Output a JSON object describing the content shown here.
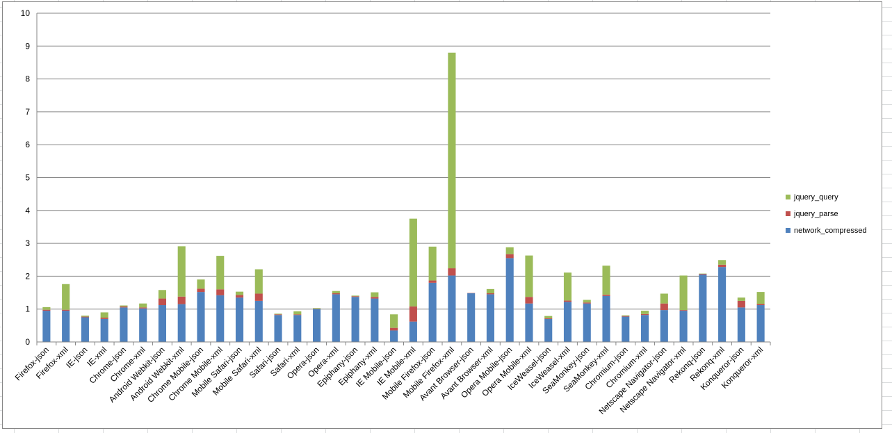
{
  "chart_data": {
    "type": "bar",
    "stacked": true,
    "categories": [
      "Firefox-json",
      "Firefox-xml",
      "IE-json",
      "IE-xml",
      "Chrome-json",
      "Chrome-xml",
      "Android Webkit-json",
      "Android Webkit-xml",
      "Chrome Mobile-json",
      "Chrome Mobile-xml",
      "Mobile Safari-json",
      "Mobile Safari-xml",
      "Safari-json",
      "Safari-xml",
      "Opera-json",
      "Opera-xml",
      "Epiphany-json",
      "Epiphany-xml",
      "IE Mobile-json",
      "IE Mobile-xml",
      "Mobile Firefox-json",
      "Mobile Firefox-xml",
      "Avant Browser-json",
      "Avant Browser-xml",
      "Opera Mobile-json",
      "Opera Mobile-xml",
      "IceWeasel-json",
      "IceWeasel-xml",
      "SeaMonkey-json",
      "SeaMonkey-xml",
      "Chromium-json",
      "Chromium-xml",
      "Netscape Navigator-json",
      "Netscape Navigator-xml",
      "Rekonq-json",
      "Rekonq-xml",
      "Konqueror-json",
      "Konqueror-xml"
    ],
    "series": [
      {
        "name": "network_compressed",
        "color": "#4f81bd",
        "values": [
          0.95,
          0.95,
          0.75,
          0.7,
          1.05,
          1.02,
          1.12,
          1.15,
          1.52,
          1.42,
          1.35,
          1.25,
          0.82,
          0.82,
          1.0,
          1.45,
          1.37,
          1.32,
          0.35,
          0.62,
          1.8,
          2.02,
          1.48,
          1.45,
          2.55,
          1.17,
          0.7,
          1.22,
          1.17,
          1.4,
          0.77,
          0.82,
          0.97,
          0.95,
          2.05,
          2.28,
          1.05,
          1.12
        ]
      },
      {
        "name": "jquery_parse",
        "color": "#c0504d",
        "values": [
          0.03,
          0.03,
          0.02,
          0.04,
          0.03,
          0.03,
          0.2,
          0.23,
          0.1,
          0.18,
          0.08,
          0.22,
          0.02,
          0.02,
          0.01,
          0.03,
          0.02,
          0.05,
          0.08,
          0.46,
          0.07,
          0.22,
          0.01,
          0.03,
          0.12,
          0.2,
          0.02,
          0.04,
          0.03,
          0.04,
          0.02,
          0.03,
          0.2,
          0.02,
          0.02,
          0.07,
          0.2,
          0.04
        ]
      },
      {
        "name": "jquery_query",
        "color": "#9bbb59",
        "values": [
          0.08,
          0.78,
          0.03,
          0.16,
          0.03,
          0.12,
          0.26,
          1.53,
          0.28,
          1.02,
          0.1,
          0.74,
          0.02,
          0.09,
          0.02,
          0.07,
          0.02,
          0.14,
          0.41,
          2.67,
          1.03,
          6.56,
          0.0,
          0.13,
          0.21,
          1.26,
          0.07,
          0.85,
          0.08,
          0.88,
          0.02,
          0.1,
          0.3,
          1.05,
          0.01,
          0.14,
          0.1,
          0.36
        ]
      }
    ],
    "ylim": [
      0,
      10
    ],
    "yticks": [
      0,
      1,
      2,
      3,
      4,
      5,
      6,
      7,
      8,
      9,
      10
    ],
    "grid": true,
    "legend": {
      "position": "right",
      "order": [
        "jquery_query",
        "jquery_parse",
        "network_compressed"
      ]
    }
  }
}
